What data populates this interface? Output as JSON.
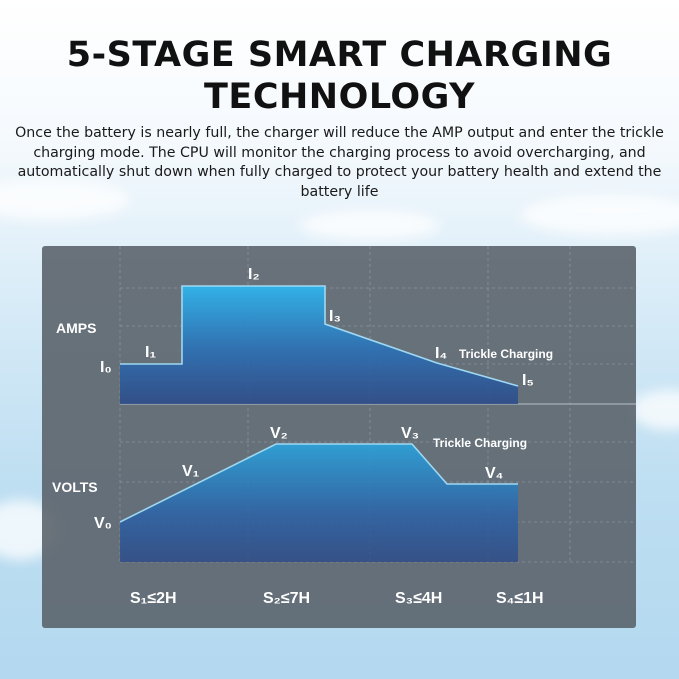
{
  "title": "5-STAGE SMART CHARGING TECHNOLOGY",
  "description": "Once the battery is nearly full, the charger will reduce the AMP output and enter the trickle charging mode. The CPU will monitor the charging process to avoid overcharging, and automatically shut down when fully charged to protect your battery health and extend the battery life",
  "amps": {
    "label": "AMPS",
    "points": [
      {
        "label": "I₀"
      },
      {
        "label": "I₁"
      },
      {
        "label": "I₂"
      },
      {
        "label": "I₃"
      },
      {
        "label": "I₄"
      },
      {
        "label": "I₅"
      }
    ],
    "annotation": "Trickle Charging"
  },
  "volts": {
    "label": "VOLTS",
    "points": [
      {
        "label": "V₀"
      },
      {
        "label": "V₁"
      },
      {
        "label": "V₂"
      },
      {
        "label": "V₃"
      },
      {
        "label": "V₄"
      }
    ],
    "annotation": "Trickle Charging"
  },
  "stages": [
    {
      "label": "S₁≤2H"
    },
    {
      "label": "S₂≤7H"
    },
    {
      "label": "S₃≤4H"
    },
    {
      "label": "S₄≤1H"
    }
  ],
  "colors": {
    "panel": "#585f67",
    "fill_top": "#2fb3ea",
    "fill_bottom": "#2a4a8a",
    "line": "#9fd8f2"
  }
}
